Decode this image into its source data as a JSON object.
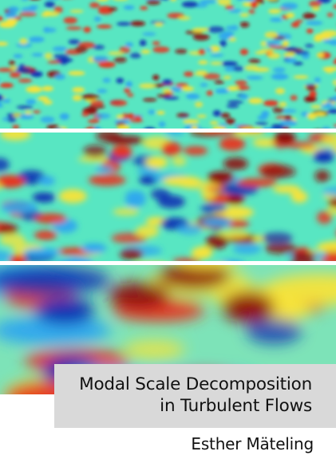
{
  "cover": {
    "title_line_1": "Modal Scale Decomposition",
    "title_line_2": "in Turbulent Flows",
    "author": "Esther Mäteling"
  },
  "colors": {
    "background": "#ffffff",
    "title_box": "#d9d9d9",
    "text": "#111111",
    "field_base": "#58e6c2",
    "field_cold": "#0a2fb3",
    "field_cool": "#2fa7ee",
    "field_warm": "#f6e33a",
    "field_hot": "#e8321e",
    "field_extreme": "#8e0b0b"
  },
  "images": [
    {
      "name": "fine-scale-flow-field",
      "icon": "turbulence-field-image"
    },
    {
      "name": "medium-scale-flow-field",
      "icon": "turbulence-field-image"
    },
    {
      "name": "large-scale-flow-field",
      "icon": "turbulence-field-image"
    }
  ]
}
